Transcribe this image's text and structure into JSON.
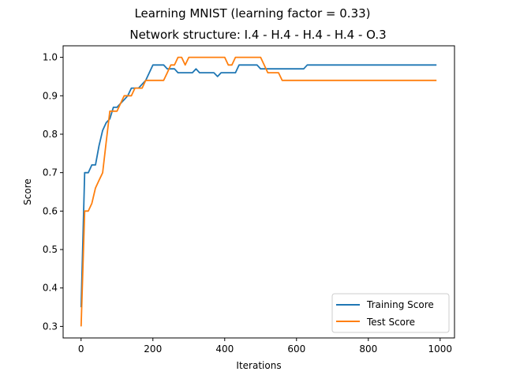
{
  "chart_data": {
    "type": "line",
    "suptitle": "Learning MNIST (learning factor = 0.33)",
    "title": "Network structure: I.4 - H.4 - H.4 - H.4 - O.3",
    "xlabel": "Iterations",
    "ylabel": "Score",
    "xlim": [
      -50,
      1040
    ],
    "ylim": [
      0.27,
      1.03
    ],
    "xticks": [
      0,
      200,
      400,
      600,
      800,
      1000
    ],
    "xtick_labels": [
      "0",
      "200",
      "400",
      "600",
      "800",
      "1000"
    ],
    "yticks": [
      0.3,
      0.4,
      0.5,
      0.6,
      0.7,
      0.8,
      0.9,
      1.0
    ],
    "ytick_labels": [
      "0.3",
      "0.4",
      "0.5",
      "0.6",
      "0.7",
      "0.8",
      "0.9",
      "1.0"
    ],
    "grid": false,
    "legend_position": "lower-right",
    "series": [
      {
        "name": "Training Score",
        "color": "#1f77b4",
        "x": [
          0,
          10,
          20,
          30,
          40,
          50,
          60,
          70,
          80,
          90,
          100,
          110,
          120,
          130,
          140,
          150,
          160,
          170,
          180,
          190,
          200,
          210,
          220,
          230,
          240,
          250,
          260,
          270,
          280,
          290,
          300,
          310,
          320,
          330,
          340,
          350,
          360,
          370,
          380,
          390,
          400,
          410,
          420,
          430,
          440,
          450,
          460,
          470,
          480,
          490,
          500,
          510,
          520,
          530,
          540,
          550,
          560,
          570,
          580,
          590,
          600,
          610,
          620,
          630,
          640,
          650,
          660,
          670,
          680,
          690,
          700,
          750,
          800,
          850,
          900,
          950,
          990
        ],
        "values": [
          0.35,
          0.7,
          0.7,
          0.72,
          0.72,
          0.77,
          0.81,
          0.83,
          0.84,
          0.87,
          0.87,
          0.88,
          0.89,
          0.9,
          0.92,
          0.92,
          0.92,
          0.93,
          0.94,
          0.96,
          0.98,
          0.98,
          0.98,
          0.98,
          0.97,
          0.97,
          0.97,
          0.96,
          0.96,
          0.96,
          0.96,
          0.96,
          0.97,
          0.96,
          0.96,
          0.96,
          0.96,
          0.96,
          0.95,
          0.96,
          0.96,
          0.96,
          0.96,
          0.96,
          0.98,
          0.98,
          0.98,
          0.98,
          0.98,
          0.98,
          0.97,
          0.97,
          0.97,
          0.97,
          0.97,
          0.97,
          0.97,
          0.97,
          0.97,
          0.97,
          0.97,
          0.97,
          0.97,
          0.98,
          0.98,
          0.98,
          0.98,
          0.98,
          0.98,
          0.98,
          0.98,
          0.98,
          0.98,
          0.98,
          0.98,
          0.98,
          0.98
        ]
      },
      {
        "name": "Test Score",
        "color": "#ff7f0e",
        "x": [
          0,
          10,
          20,
          30,
          40,
          50,
          60,
          70,
          80,
          90,
          100,
          110,
          120,
          130,
          140,
          150,
          160,
          170,
          180,
          190,
          200,
          210,
          220,
          230,
          240,
          250,
          260,
          270,
          280,
          290,
          300,
          310,
          320,
          330,
          340,
          350,
          360,
          370,
          380,
          390,
          400,
          410,
          420,
          430,
          440,
          450,
          460,
          470,
          480,
          490,
          500,
          510,
          520,
          530,
          540,
          550,
          560,
          570,
          580,
          590,
          600,
          650,
          700,
          750,
          800,
          850,
          900,
          950,
          990
        ],
        "values": [
          0.3,
          0.6,
          0.6,
          0.62,
          0.66,
          0.68,
          0.7,
          0.78,
          0.86,
          0.86,
          0.86,
          0.88,
          0.9,
          0.9,
          0.9,
          0.92,
          0.92,
          0.92,
          0.94,
          0.94,
          0.94,
          0.94,
          0.94,
          0.94,
          0.96,
          0.98,
          0.98,
          1.0,
          1.0,
          0.98,
          1.0,
          1.0,
          1.0,
          1.0,
          1.0,
          1.0,
          1.0,
          1.0,
          1.0,
          1.0,
          1.0,
          0.98,
          0.98,
          1.0,
          1.0,
          1.0,
          1.0,
          1.0,
          1.0,
          1.0,
          1.0,
          0.98,
          0.96,
          0.96,
          0.96,
          0.96,
          0.94,
          0.94,
          0.94,
          0.94,
          0.94,
          0.94,
          0.94,
          0.94,
          0.94,
          0.94,
          0.94,
          0.94,
          0.94
        ]
      }
    ]
  }
}
